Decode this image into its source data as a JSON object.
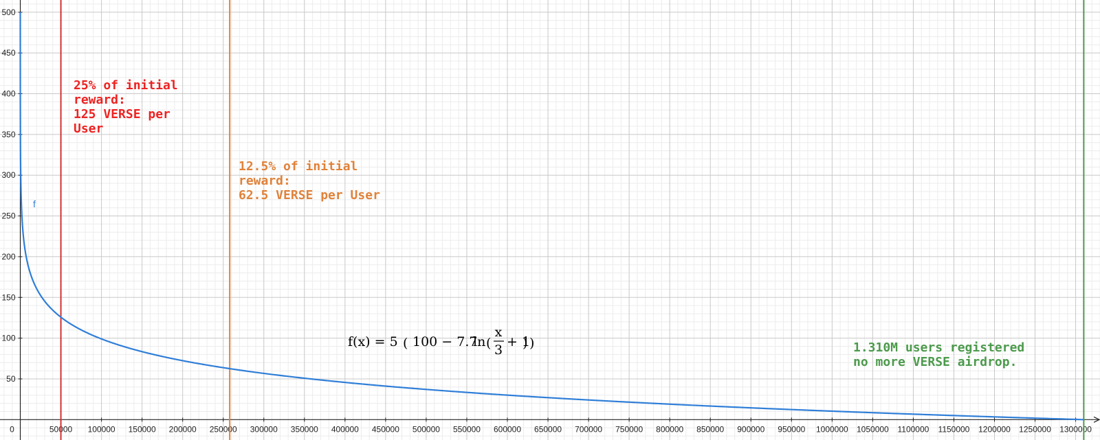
{
  "chart_data": {
    "type": "line",
    "title": "",
    "xlabel": "",
    "ylabel": "",
    "xlim": [
      -25000,
      1330000
    ],
    "ylim": [
      -25,
      515
    ],
    "x_ticks": [
      50000,
      100000,
      150000,
      200000,
      250000,
      300000,
      350000,
      400000,
      450000,
      500000,
      550000,
      600000,
      650000,
      700000,
      750000,
      800000,
      850000,
      900000,
      950000,
      1000000,
      1050000,
      1100000,
      1150000,
      1200000,
      1250000,
      1300000
    ],
    "y_ticks": [
      50,
      100,
      150,
      200,
      250,
      300,
      350,
      400,
      450,
      500
    ],
    "origin_label": "0",
    "grid": true,
    "series": [
      {
        "name": "f",
        "color": "#2f7ed8",
        "formula": "f(x) = 5 (100 − 7.7 ln(x/3 + 1))",
        "x_range": [
          0,
          1310000
        ],
        "points": [
          [
            0,
            500
          ],
          [
            10,
            433
          ],
          [
            100,
            350
          ],
          [
            1000,
            277
          ],
          [
            5000,
            215
          ],
          [
            10000,
            188
          ],
          [
            25000,
            153
          ],
          [
            50000,
            125
          ],
          [
            100000,
            99
          ],
          [
            150000,
            83
          ],
          [
            200000,
            72
          ],
          [
            258000,
            62.5
          ],
          [
            300000,
            57
          ],
          [
            400000,
            46
          ],
          [
            500000,
            38
          ],
          [
            600000,
            31
          ],
          [
            700000,
            25
          ],
          [
            800000,
            20
          ],
          [
            900000,
            15
          ],
          [
            1000000,
            11
          ],
          [
            1100000,
            7.7
          ],
          [
            1200000,
            4.3
          ],
          [
            1310000,
            0.6
          ]
        ]
      }
    ],
    "vertical_lines": [
      {
        "x": 50000,
        "color": "#d32f2f"
      },
      {
        "x": 258000,
        "color": "#e0823a"
      },
      {
        "x": 1310000,
        "color": "#4c9a4c"
      }
    ],
    "annotations": [
      {
        "lines": [
          "25% of initial",
          "reward:",
          "125 VERSE per",
          "User"
        ],
        "color": "#ee2222"
      },
      {
        "lines": [
          "12.5% of initial",
          "reward:",
          "62.5 VERSE per User"
        ],
        "color": "#e0823a"
      },
      {
        "lines": [
          "1.310M users registered",
          "no more VERSE airdrop."
        ],
        "color": "#4c9a4c"
      }
    ],
    "formula_label": {
      "prefix": "f(x) = 5",
      "ln": "ln",
      "frac_num": "x",
      "frac_den": "3",
      "const_mid": "100 − 7.7",
      "plus_one": "+ 1"
    },
    "curve_label": "f"
  }
}
